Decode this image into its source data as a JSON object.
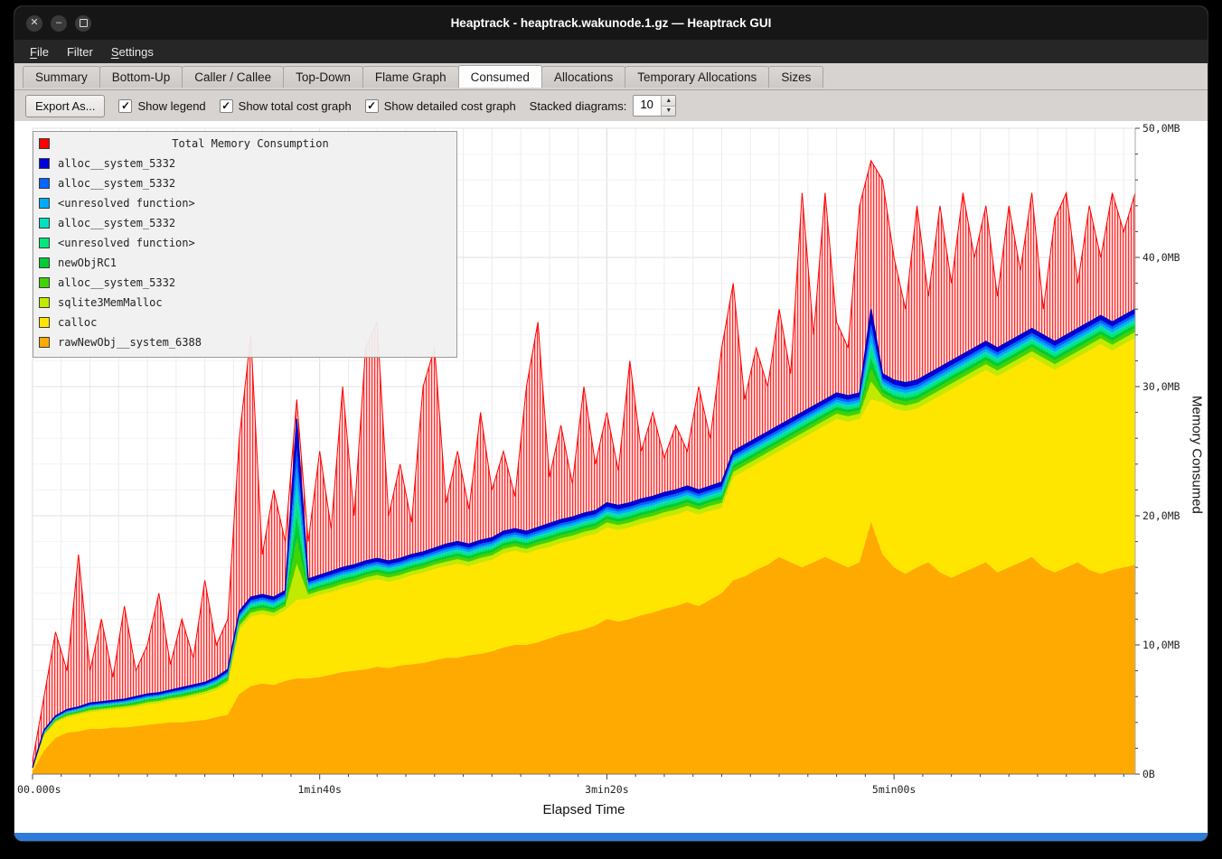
{
  "window": {
    "title": "Heaptrack - heaptrack.wakunode.1.gz — Heaptrack GUI",
    "controls": [
      {
        "name": "close",
        "glyph": "✕"
      },
      {
        "name": "minimize",
        "glyph": "–"
      },
      {
        "name": "maximize",
        "glyph": ""
      }
    ]
  },
  "menu": {
    "items": [
      {
        "label": "File",
        "mnemonic": "F"
      },
      {
        "label": "Filter",
        "mnemonic": ""
      },
      {
        "label": "Settings",
        "mnemonic": "S"
      }
    ]
  },
  "tabs": {
    "items": [
      "Summary",
      "Bottom-Up",
      "Caller / Callee",
      "Top-Down",
      "Flame Graph",
      "Consumed",
      "Allocations",
      "Temporary Allocations",
      "Sizes"
    ],
    "active": "Consumed"
  },
  "toolbar": {
    "export_label": "Export As...",
    "checkboxes": [
      {
        "label": "Show legend",
        "checked": true
      },
      {
        "label": "Show total cost graph",
        "checked": true
      },
      {
        "label": "Show detailed cost graph",
        "checked": true
      }
    ],
    "spin_label": "Stacked diagrams:",
    "spin_value": "10"
  },
  "legend": {
    "title": "Total Memory Consumption",
    "title_color": "#ff0000",
    "items": [
      {
        "label": "alloc__system_5332",
        "color": "#0000d9"
      },
      {
        "label": "alloc__system_5332",
        "color": "#0066ff"
      },
      {
        "label": "<unresolved function>",
        "color": "#00aaff"
      },
      {
        "label": "alloc__system_5332",
        "color": "#00e0c0"
      },
      {
        "label": "<unresolved function>",
        "color": "#00e87a"
      },
      {
        "label": "newObjRC1",
        "color": "#00cc33"
      },
      {
        "label": "alloc__system_5332",
        "color": "#40d400"
      },
      {
        "label": "sqlite3MemMalloc",
        "color": "#c0eb00"
      },
      {
        "label": "calloc",
        "color": "#ffe600"
      },
      {
        "label": "rawNewObj__system_6388",
        "color": "#ffaa00"
      }
    ]
  },
  "axes": {
    "x_title": "Elapsed Time",
    "y_title": "Memory Consumed",
    "x_ticks": [
      {
        "t": 0,
        "label": "00.000s"
      },
      {
        "t": 100,
        "label": "1min40s"
      },
      {
        "t": 200,
        "label": "3min20s"
      },
      {
        "t": 300,
        "label": "5min00s"
      }
    ],
    "y_ticks": [
      {
        "mb": 0,
        "label": "0B"
      },
      {
        "mb": 10,
        "label": "10,0MB"
      },
      {
        "mb": 20,
        "label": "20,0MB"
      },
      {
        "mb": 30,
        "label": "30,0MB"
      },
      {
        "mb": 40,
        "label": "40,0MB"
      },
      {
        "mb": 50,
        "label": "50,0MB"
      }
    ]
  },
  "colors": {
    "bottom_bar": "#2d7bd9"
  },
  "chart_data": {
    "type": "area",
    "stacked": true,
    "title": "Total Memory Consumption",
    "xlabel": "Elapsed Time",
    "ylabel": "Memory Consumed",
    "x_step_s": 4,
    "x_max_s": 384,
    "y_max_mb": 50,
    "total": {
      "name": "Total Memory Consumption",
      "color": "#ff0000",
      "values_mb": [
        1.0,
        6.0,
        11.0,
        8.0,
        17.0,
        8.0,
        12.0,
        7.5,
        13.0,
        8.0,
        10.0,
        14.0,
        8.5,
        12.0,
        9.0,
        15.0,
        10.0,
        12.0,
        26.0,
        34.0,
        17.0,
        22.0,
        18.0,
        29.0,
        18.0,
        25.0,
        19.0,
        30.0,
        20.0,
        33.0,
        35.0,
        20.0,
        24.0,
        19.5,
        30.0,
        33.0,
        21.0,
        25.0,
        20.5,
        28.0,
        22.0,
        25.0,
        21.5,
        30.0,
        35.0,
        23.0,
        27.0,
        22.5,
        30.0,
        24.0,
        28.0,
        23.5,
        32.0,
        25.0,
        28.0,
        24.5,
        27.0,
        25.0,
        30.0,
        26.0,
        33.0,
        38.0,
        29.0,
        33.0,
        30.0,
        36.0,
        31.0,
        45.0,
        34.0,
        45.0,
        35.0,
        33.0,
        44.0,
        47.5,
        46.0,
        40.0,
        36.0,
        44.0,
        37.0,
        44.0,
        38.0,
        45.0,
        40.0,
        44.0,
        37.0,
        44.0,
        39.0,
        45.0,
        36.0,
        43.0,
        45.0,
        38.0,
        44.0,
        40.0,
        45.0,
        42.0,
        45.0
      ]
    },
    "base_layers": [
      {
        "name": "rawNewObj__system_6388",
        "color": "#ffaa00",
        "top_mb": [
          0.2,
          1.8,
          2.8,
          3.2,
          3.3,
          3.5,
          3.5,
          3.6,
          3.6,
          3.7,
          3.8,
          3.9,
          4.0,
          4.0,
          4.1,
          4.2,
          4.4,
          4.6,
          6.2,
          6.8,
          7.0,
          6.9,
          7.2,
          7.4,
          7.4,
          7.5,
          7.7,
          7.9,
          8.0,
          8.1,
          8.3,
          8.2,
          8.4,
          8.5,
          8.6,
          8.8,
          9.0,
          9.0,
          9.2,
          9.3,
          9.5,
          9.8,
          10.0,
          10.0,
          10.2,
          10.5,
          10.8,
          11.0,
          11.2,
          11.5,
          12.0,
          11.8,
          12.0,
          12.3,
          12.5,
          12.8,
          13.0,
          13.3,
          13.0,
          13.5,
          14.0,
          15.0,
          15.3,
          15.8,
          16.2,
          16.8,
          16.4,
          16.0,
          16.4,
          16.8,
          16.4,
          16.0,
          16.4,
          19.5,
          17.0,
          16.0,
          15.5,
          16.0,
          16.4,
          15.6,
          15.2,
          15.6,
          16.0,
          16.4,
          15.6,
          16.0,
          16.4,
          16.8,
          16.0,
          15.6,
          16.0,
          16.4,
          15.8,
          15.5,
          15.8,
          16.0,
          16.2
        ]
      },
      {
        "name": "calloc",
        "color": "#ffe600",
        "top_mb": [
          0.4,
          3.0,
          4.0,
          4.4,
          4.6,
          4.8,
          4.9,
          5.0,
          5.1,
          5.2,
          5.4,
          5.5,
          5.7,
          5.8,
          6.0,
          6.2,
          6.5,
          7.0,
          11.2,
          12.2,
          12.4,
          12.2,
          12.7,
          13.5,
          13.6,
          13.9,
          14.1,
          14.4,
          14.6,
          14.9,
          15.1,
          14.9,
          15.1,
          15.4,
          15.6,
          15.9,
          16.1,
          16.3,
          16.1,
          16.4,
          16.6,
          17.1,
          17.3,
          17.1,
          17.4,
          17.6,
          17.9,
          18.1,
          18.4,
          18.6,
          19.1,
          18.9,
          19.1,
          19.4,
          19.6,
          19.9,
          20.1,
          20.4,
          20.1,
          20.4,
          20.6,
          23.0,
          23.5,
          24.0,
          24.5,
          25.0,
          25.5,
          26.0,
          26.5,
          27.0,
          27.5,
          27.3,
          27.5,
          29.0,
          28.8,
          28.3,
          28.1,
          28.3,
          28.8,
          29.3,
          29.8,
          30.3,
          30.8,
          31.3,
          30.8,
          31.3,
          31.8,
          32.3,
          31.8,
          31.3,
          31.8,
          32.3,
          32.8,
          33.3,
          32.8,
          33.3,
          33.8
        ]
      }
    ],
    "upper_top_mb": [
      0.5,
      3.4,
      4.5,
      5.0,
      5.2,
      5.5,
      5.6,
      5.7,
      5.8,
      6.0,
      6.2,
      6.3,
      6.5,
      6.7,
      6.9,
      7.1,
      7.5,
      8.1,
      12.6,
      13.7,
      13.9,
      13.7,
      14.2,
      27.5,
      15.1,
      15.4,
      15.7,
      16.0,
      16.2,
      16.5,
      16.7,
      16.5,
      16.7,
      17.0,
      17.2,
      17.5,
      17.8,
      18.0,
      17.8,
      18.1,
      18.3,
      18.8,
      19.0,
      18.8,
      19.1,
      19.4,
      19.7,
      19.9,
      20.2,
      20.4,
      21.0,
      20.8,
      21.0,
      21.3,
      21.5,
      21.8,
      22.0,
      22.3,
      22.0,
      22.3,
      22.6,
      25.0,
      25.5,
      26.0,
      26.5,
      27.0,
      27.5,
      28.0,
      28.5,
      29.0,
      29.5,
      29.3,
      29.5,
      36.0,
      31.0,
      30.5,
      30.3,
      30.5,
      31.0,
      31.5,
      32.0,
      32.5,
      33.0,
      33.5,
      33.0,
      33.5,
      34.0,
      34.5,
      34.0,
      33.5,
      34.0,
      34.5,
      35.0,
      35.5,
      35.0,
      35.5,
      36.0
    ],
    "upper_bands": [
      {
        "name": "sqlite3MemMalloc",
        "color": "#c0eb00",
        "share": 0.2
      },
      {
        "name": "alloc__system_5332",
        "color": "#40d400",
        "share": 0.14
      },
      {
        "name": "newObjRC1",
        "color": "#00cc33",
        "share": 0.12
      },
      {
        "name": "<unresolved function>",
        "color": "#00e87a",
        "share": 0.1
      },
      {
        "name": "alloc__system_5332",
        "color": "#00e0c0",
        "share": 0.08
      },
      {
        "name": "<unresolved function>",
        "color": "#00aaff",
        "share": 0.1
      },
      {
        "name": "alloc__system_5332",
        "color": "#0066ff",
        "share": 0.1
      },
      {
        "name": "alloc__system_5332",
        "color": "#0000d9",
        "share": 0.16
      }
    ]
  }
}
